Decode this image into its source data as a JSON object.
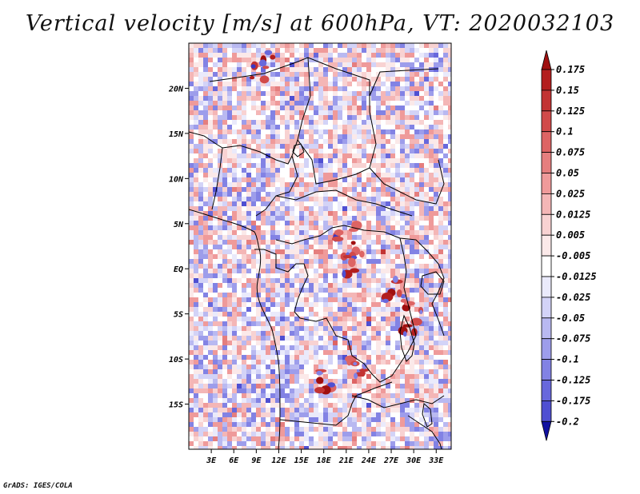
{
  "title": "Vertical velocity [m/s] at 600hPa, VT: 2020032103",
  "credit": "GrADS: IGES/COLA",
  "colors": {
    "positive": [
      "#fbe9e9",
      "#f8d2d2",
      "#f4b6b6",
      "#ef9a9a",
      "#e57e7e",
      "#dd6464",
      "#d14a4a",
      "#c23333",
      "#b31e1e",
      "#a01010"
    ],
    "negative": [
      "#eaeafb",
      "#d3d3f7",
      "#b9b9f1",
      "#9d9deb",
      "#8282e4",
      "#6868dc",
      "#4f4fd2",
      "#3838c4",
      "#2424b6",
      "#1010a0"
    ],
    "coastline": "#000000",
    "background": "#ffffff"
  },
  "chart_data": {
    "type": "heatmap",
    "variable": "Vertical velocity",
    "units": "m/s",
    "level": "600hPa",
    "valid_time": "2020032103",
    "x_ticks": [
      "3E",
      "6E",
      "9E",
      "12E",
      "15E",
      "18E",
      "21E",
      "24E",
      "27E",
      "30E",
      "33E"
    ],
    "x_tick_values": [
      3,
      6,
      9,
      12,
      15,
      18,
      21,
      24,
      27,
      30,
      33
    ],
    "y_ticks": [
      "20N",
      "15N",
      "10N",
      "5N",
      "EQ",
      "5S",
      "10S",
      "15S"
    ],
    "y_tick_values": [
      20,
      15,
      10,
      5,
      0,
      -5,
      -10,
      -15
    ],
    "lon_range": [
      0,
      35
    ],
    "lat_range": [
      -20,
      25
    ],
    "colorbar_labels": [
      "0.175",
      "0.15",
      "0.125",
      "0.1",
      "0.075",
      "0.05",
      "0.025",
      "0.0125",
      "0.005",
      "-0.005",
      "-0.0125",
      "-0.025",
      "-0.05",
      "-0.075",
      "-0.1",
      "-0.125",
      "-0.175",
      "-0.2"
    ],
    "colorbar_extend": "both"
  }
}
